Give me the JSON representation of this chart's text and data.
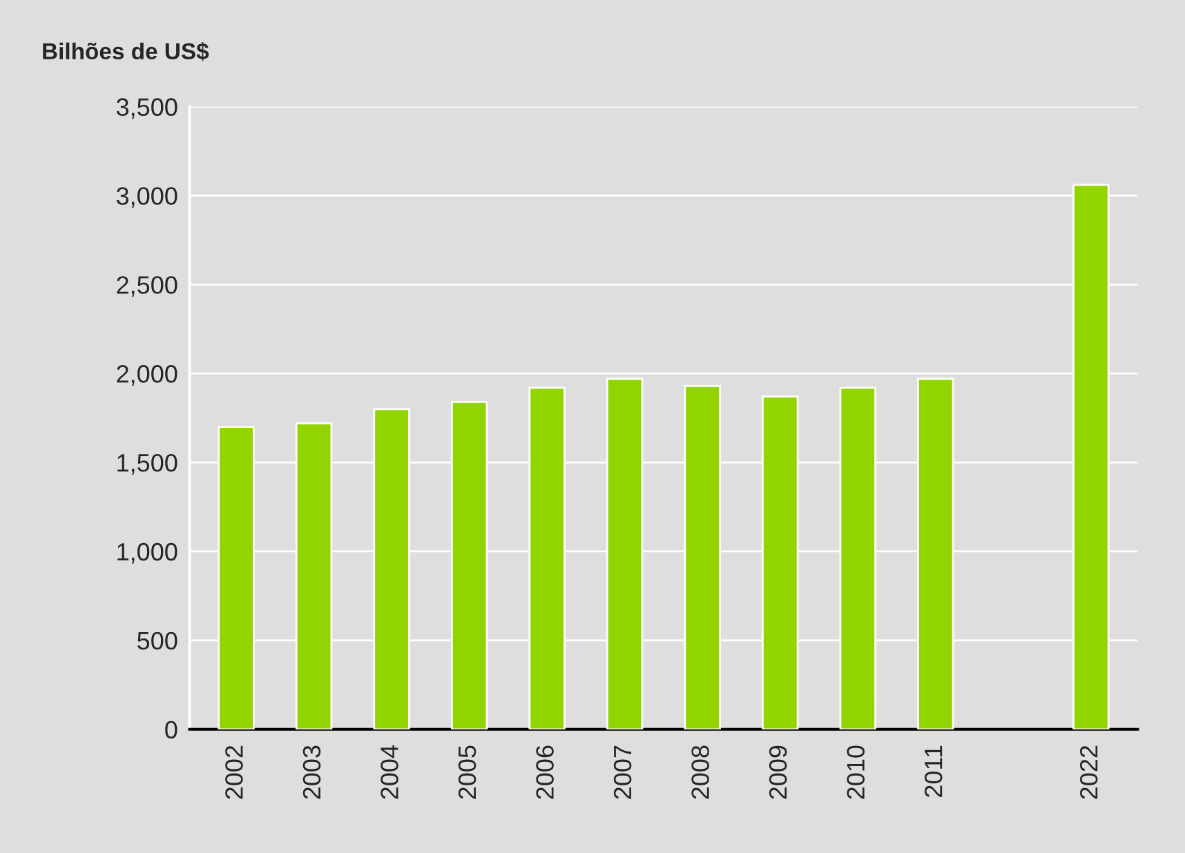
{
  "chart_data": {
    "type": "bar",
    "ylabel": "Bilhões de US$",
    "categories": [
      "2002",
      "2003",
      "2004",
      "2005",
      "2006",
      "2007",
      "2008",
      "2009",
      "2010",
      "2011",
      null,
      "2022"
    ],
    "values": [
      1700,
      1720,
      1800,
      1840,
      1920,
      1970,
      1930,
      1870,
      1920,
      1970,
      null,
      3060
    ],
    "color": "#92d400",
    "ylim": [
      0,
      3500
    ],
    "yticks": [
      0,
      500,
      {
        "value": 1000,
        "label": "1,000"
      },
      {
        "value": 1500,
        "label": "1,500"
      },
      {
        "value": 2000,
        "label": "2,000"
      },
      {
        "value": 2500,
        "label": "2,500"
      },
      {
        "value": 3000,
        "label": "3,000"
      },
      {
        "value": 3500,
        "label": "3,500"
      }
    ],
    "grid": "y"
  }
}
